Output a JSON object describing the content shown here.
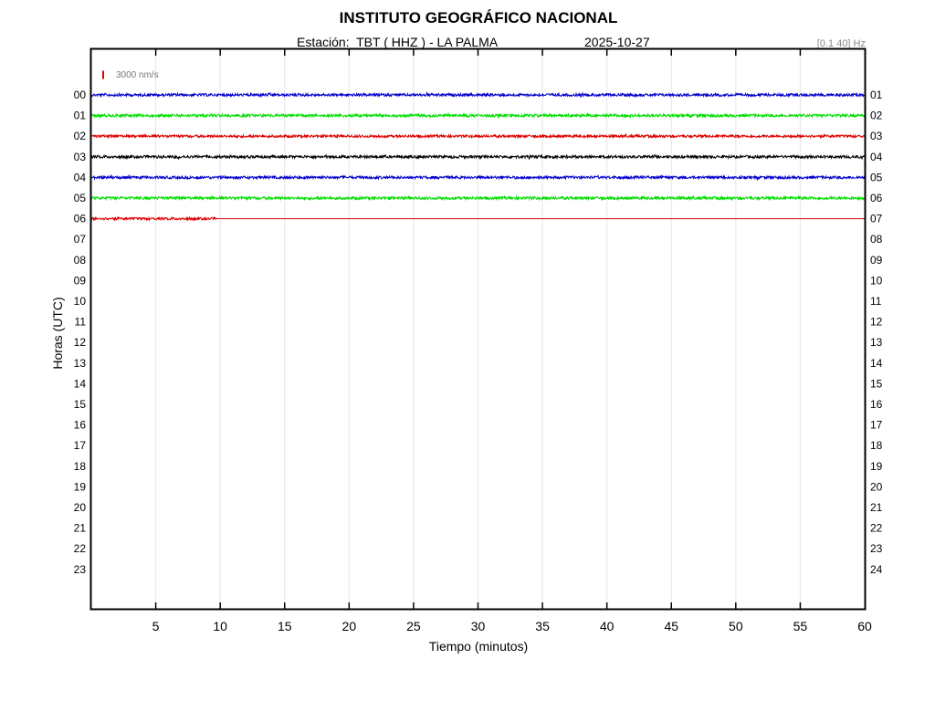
{
  "header": {
    "title": "INSTITUTO GEOGRÁFICO NACIONAL",
    "station_line": "Estación:  TBT ( HHZ ) - LA PALMA",
    "date": "2025-10-27",
    "filter": "[0.1 40] Hz"
  },
  "colors": {
    "blue": "#0000cc",
    "green": "#00dd00",
    "red": "#dd0000",
    "black": "#000000",
    "grid": "#e6e6e6",
    "scale_text": "#777777"
  },
  "chart_data": {
    "type": "line",
    "title": "INSTITUTO GEOGRÁFICO NACIONAL",
    "subtitle": "Estación:  TBT ( HHZ ) - LA PALMA",
    "xlabel": "Tiempo (minutos)",
    "ylabel": "Horas (UTC)",
    "xlim": [
      0,
      60
    ],
    "x_ticks": [
      5,
      10,
      15,
      20,
      25,
      30,
      35,
      40,
      45,
      50,
      55,
      60
    ],
    "left_hour_labels": [
      "00",
      "01",
      "02",
      "03",
      "04",
      "05",
      "06",
      "07",
      "08",
      "09",
      "10",
      "11",
      "12",
      "13",
      "14",
      "15",
      "16",
      "17",
      "18",
      "19",
      "20",
      "21",
      "22",
      "23"
    ],
    "right_hour_labels": [
      "01",
      "02",
      "03",
      "04",
      "05",
      "06",
      "07",
      "08",
      "09",
      "10",
      "11",
      "12",
      "13",
      "14",
      "15",
      "16",
      "17",
      "18",
      "19",
      "20",
      "21",
      "22",
      "23",
      "24"
    ],
    "grid": true,
    "scale_bar_label": "3000 nm/s",
    "traces": [
      {
        "hour": "00",
        "color": "blue",
        "start_min": 0,
        "end_min": 60,
        "amplitude_nm_s": 900
      },
      {
        "hour": "01",
        "color": "green",
        "start_min": 0,
        "end_min": 60,
        "amplitude_nm_s": 950
      },
      {
        "hour": "02",
        "color": "red",
        "start_min": 0,
        "end_min": 60,
        "amplitude_nm_s": 850
      },
      {
        "hour": "03",
        "color": "black",
        "start_min": 0,
        "end_min": 60,
        "amplitude_nm_s": 900
      },
      {
        "hour": "04",
        "color": "blue",
        "start_min": 0,
        "end_min": 60,
        "amplitude_nm_s": 900
      },
      {
        "hour": "05",
        "color": "green",
        "start_min": 0,
        "end_min": 60,
        "amplitude_nm_s": 950
      },
      {
        "hour": "06",
        "color": "red",
        "start_min": 0,
        "end_min": 9.7,
        "amplitude_nm_s": 850,
        "flat_line_to_min": 60
      }
    ]
  }
}
